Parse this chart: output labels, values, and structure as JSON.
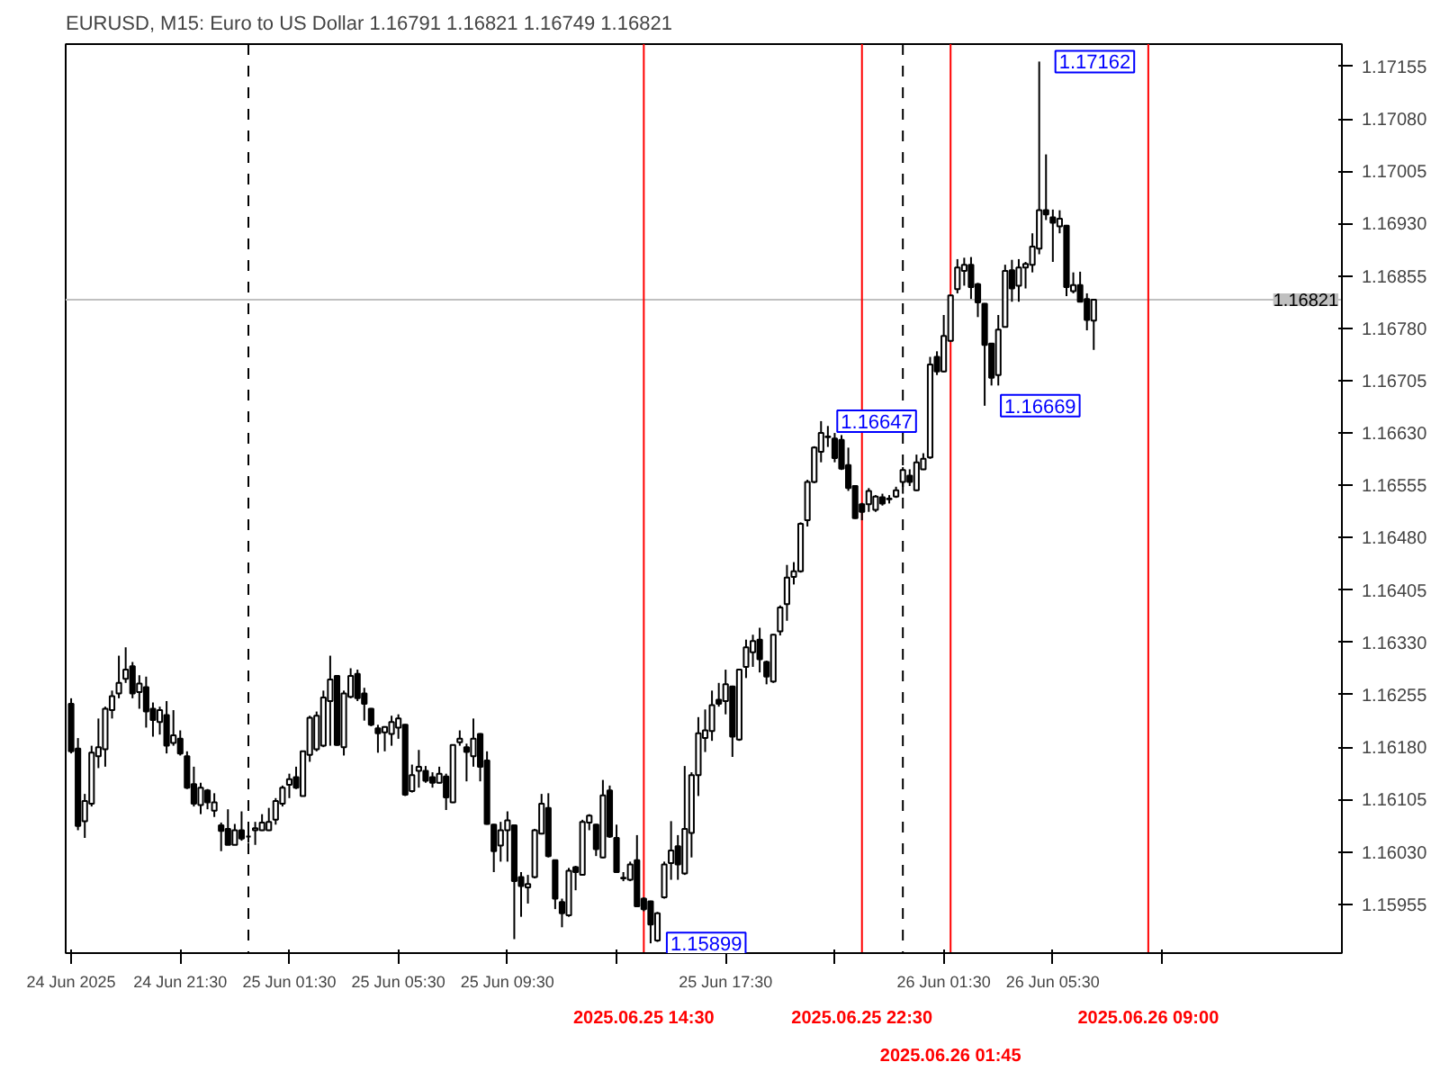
{
  "chart_data": {
    "type": "candlestick",
    "title": "EURUSD, M15: Euro to US Dollar 1.16791 1.16821 1.16749 1.16821",
    "x": [
      "2025-06-24T17:30",
      "2025-06-24T17:45",
      "2025-06-24T18:00",
      "2025-06-24T18:15",
      "2025-06-24T18:30",
      "2025-06-24T18:45",
      "2025-06-24T19:00",
      "2025-06-24T19:15",
      "2025-06-24T19:30",
      "2025-06-24T19:45",
      "2025-06-24T20:00",
      "2025-06-24T20:15",
      "2025-06-24T20:30",
      "2025-06-24T20:45",
      "2025-06-24T21:00",
      "2025-06-24T21:15",
      "2025-06-24T21:30",
      "2025-06-24T21:45",
      "2025-06-24T22:00",
      "2025-06-24T22:15",
      "2025-06-24T22:30",
      "2025-06-24T22:45",
      "2025-06-24T23:00",
      "2025-06-24T23:15",
      "2025-06-24T23:30",
      "2025-06-24T23:45",
      "2025-06-25T00:00",
      "2025-06-25T00:15",
      "2025-06-25T00:30",
      "2025-06-25T00:45",
      "2025-06-25T01:00",
      "2025-06-25T01:15",
      "2025-06-25T01:30",
      "2025-06-25T01:45",
      "2025-06-25T02:00",
      "2025-06-25T02:15",
      "2025-06-25T02:30",
      "2025-06-25T02:45",
      "2025-06-25T03:00",
      "2025-06-25T03:15",
      "2025-06-25T03:30",
      "2025-06-25T03:45",
      "2025-06-25T04:00",
      "2025-06-25T04:15",
      "2025-06-25T04:30",
      "2025-06-25T04:45",
      "2025-06-25T05:00",
      "2025-06-25T05:15",
      "2025-06-25T05:30",
      "2025-06-25T05:45",
      "2025-06-25T06:00",
      "2025-06-25T06:15",
      "2025-06-25T06:30",
      "2025-06-25T06:45",
      "2025-06-25T07:00",
      "2025-06-25T07:15",
      "2025-06-25T07:30",
      "2025-06-25T07:45",
      "2025-06-25T08:00",
      "2025-06-25T08:15",
      "2025-06-25T08:30",
      "2025-06-25T08:45",
      "2025-06-25T09:00",
      "2025-06-25T09:15",
      "2025-06-25T09:30",
      "2025-06-25T09:45",
      "2025-06-25T10:00",
      "2025-06-25T10:15",
      "2025-06-25T10:30",
      "2025-06-25T10:45",
      "2025-06-25T11:00",
      "2025-06-25T11:15",
      "2025-06-25T11:30",
      "2025-06-25T11:45",
      "2025-06-25T12:00",
      "2025-06-25T12:15",
      "2025-06-25T12:30",
      "2025-06-25T12:45",
      "2025-06-25T13:00",
      "2025-06-25T13:15",
      "2025-06-25T13:30",
      "2025-06-25T13:45",
      "2025-06-25T14:00",
      "2025-06-25T14:15",
      "2025-06-25T14:30",
      "2025-06-25T14:45",
      "2025-06-25T15:00",
      "2025-06-25T15:15",
      "2025-06-25T15:30",
      "2025-06-25T15:45",
      "2025-06-25T16:00",
      "2025-06-25T16:15",
      "2025-06-25T16:30",
      "2025-06-25T16:45",
      "2025-06-25T17:00",
      "2025-06-25T17:15",
      "2025-06-25T17:30",
      "2025-06-25T17:45",
      "2025-06-25T18:00",
      "2025-06-25T18:15",
      "2025-06-25T18:30",
      "2025-06-25T18:45",
      "2025-06-25T19:00",
      "2025-06-25T19:15",
      "2025-06-25T19:30",
      "2025-06-25T19:45",
      "2025-06-25T20:00",
      "2025-06-25T20:15",
      "2025-06-25T20:30",
      "2025-06-25T20:45",
      "2025-06-25T21:00",
      "2025-06-25T21:15",
      "2025-06-25T21:30",
      "2025-06-25T21:45",
      "2025-06-25T22:00",
      "2025-06-25T22:15",
      "2025-06-25T22:30",
      "2025-06-25T22:45",
      "2025-06-25T23:00",
      "2025-06-25T23:15",
      "2025-06-25T23:30",
      "2025-06-25T23:45",
      "2025-06-26T00:00",
      "2025-06-26T00:15",
      "2025-06-26T00:30",
      "2025-06-26T00:45",
      "2025-06-26T01:00",
      "2025-06-26T01:15",
      "2025-06-26T01:30",
      "2025-06-26T01:45",
      "2025-06-26T02:00",
      "2025-06-26T02:15",
      "2025-06-26T02:30",
      "2025-06-26T02:45",
      "2025-06-26T03:00",
      "2025-06-26T03:15",
      "2025-06-26T03:30",
      "2025-06-26T03:45",
      "2025-06-26T04:00",
      "2025-06-26T04:15",
      "2025-06-26T04:30",
      "2025-06-26T04:45",
      "2025-06-26T05:00",
      "2025-06-26T05:15",
      "2025-06-26T05:30",
      "2025-06-26T05:45",
      "2025-06-26T06:00",
      "2025-06-26T06:15",
      "2025-06-26T06:30",
      "2025-06-26T06:45",
      "2025-06-26T07:00"
    ],
    "ohlc": [
      [
        1.16242,
        1.1625,
        1.16171,
        1.16174
      ],
      [
        1.16178,
        1.16193,
        1.16061,
        1.16067
      ],
      [
        1.16074,
        1.16113,
        1.1605,
        1.16103
      ],
      [
        1.16099,
        1.16182,
        1.16095,
        1.16172
      ],
      [
        1.16167,
        1.16221,
        1.1615,
        1.1618
      ],
      [
        1.16177,
        1.16238,
        1.16152,
        1.16235
      ],
      [
        1.16233,
        1.16261,
        1.16221,
        1.16253
      ],
      [
        1.16257,
        1.16311,
        1.1625,
        1.16272
      ],
      [
        1.16278,
        1.16323,
        1.16272,
        1.16291
      ],
      [
        1.16296,
        1.16302,
        1.1625,
        1.16257
      ],
      [
        1.16259,
        1.16283,
        1.16235,
        1.16271
      ],
      [
        1.16266,
        1.16281,
        1.16208,
        1.16231
      ],
      [
        1.16235,
        1.16244,
        1.16195,
        1.16219
      ],
      [
        1.16216,
        1.16238,
        1.16198,
        1.16233
      ],
      [
        1.16226,
        1.16246,
        1.16171,
        1.16182
      ],
      [
        1.16186,
        1.16233,
        1.16182,
        1.16197
      ],
      [
        1.16192,
        1.16204,
        1.16168,
        1.16171
      ],
      [
        1.16167,
        1.16174,
        1.1612,
        1.16122
      ],
      [
        1.16127,
        1.16152,
        1.16095,
        1.16099
      ],
      [
        1.16097,
        1.16129,
        1.16084,
        1.16122
      ],
      [
        1.16118,
        1.1612,
        1.16091,
        1.16101
      ],
      [
        1.16089,
        1.16114,
        1.1608,
        1.16101
      ],
      [
        1.16068,
        1.16072,
        1.16031,
        1.1606
      ],
      [
        1.16063,
        1.16091,
        1.1604,
        1.1604
      ],
      [
        1.1604,
        1.1607,
        1.1604,
        1.16061
      ],
      [
        1.16061,
        1.16088,
        1.16046,
        1.16049
      ],
      [
        1.16052,
        1.1606,
        1.16043,
        1.16052
      ],
      [
        1.16061,
        1.16073,
        1.1604,
        1.16064
      ],
      [
        1.16061,
        1.16084,
        1.1606,
        1.16072
      ],
      [
        1.16061,
        1.16093,
        1.1606,
        1.16073
      ],
      [
        1.16076,
        1.16107,
        1.16069,
        1.16103
      ],
      [
        1.16099,
        1.16125,
        1.16095,
        1.16122
      ],
      [
        1.16126,
        1.16142,
        1.16107,
        1.16134
      ],
      [
        1.16137,
        1.16152,
        1.1612,
        1.16122
      ],
      [
        1.1611,
        1.16175,
        1.1611,
        1.16174
      ],
      [
        1.16169,
        1.16225,
        1.16159,
        1.16222
      ],
      [
        1.16177,
        1.16231,
        1.16174,
        1.16225
      ],
      [
        1.16182,
        1.16261,
        1.1618,
        1.16251
      ],
      [
        1.16246,
        1.16311,
        1.16182,
        1.16277
      ],
      [
        1.16282,
        1.16283,
        1.16182,
        1.16183
      ],
      [
        1.1618,
        1.16261,
        1.16168,
        1.16257
      ],
      [
        1.16252,
        1.16293,
        1.1625,
        1.16282
      ],
      [
        1.16285,
        1.16291,
        1.16246,
        1.1625
      ],
      [
        1.16257,
        1.16265,
        1.16218,
        1.16242
      ],
      [
        1.16235,
        1.16236,
        1.1621,
        1.16212
      ],
      [
        1.16207,
        1.16212,
        1.16172,
        1.162
      ],
      [
        1.16201,
        1.1621,
        1.16174,
        1.16209
      ],
      [
        1.16199,
        1.16225,
        1.16182,
        1.16216
      ],
      [
        1.16208,
        1.16227,
        1.16192,
        1.16221
      ],
      [
        1.16212,
        1.16213,
        1.1611,
        1.16112
      ],
      [
        1.16117,
        1.16155,
        1.16115,
        1.1614
      ],
      [
        1.16146,
        1.16176,
        1.16122,
        1.16152
      ],
      [
        1.16146,
        1.16153,
        1.16129,
        1.16132
      ],
      [
        1.16137,
        1.16144,
        1.16122,
        1.16129
      ],
      [
        1.16129,
        1.16152,
        1.16128,
        1.16142
      ],
      [
        1.16138,
        1.16142,
        1.1609,
        1.16108
      ],
      [
        1.16101,
        1.16184,
        1.161,
        1.16183
      ],
      [
        1.16187,
        1.16204,
        1.16182,
        1.16192
      ],
      [
        1.1618,
        1.16185,
        1.16131,
        1.16173
      ],
      [
        1.16167,
        1.16221,
        1.16152,
        1.16192
      ],
      [
        1.16199,
        1.162,
        1.16131,
        1.16152
      ],
      [
        1.16161,
        1.16174,
        1.16069,
        1.1607
      ],
      [
        1.16069,
        1.1607,
        1.16001,
        1.16031
      ],
      [
        1.16039,
        1.16073,
        1.16016,
        1.16061
      ],
      [
        1.16061,
        1.16088,
        1.16016,
        1.16075
      ],
      [
        1.16068,
        1.16069,
        1.15905,
        1.15988
      ],
      [
        1.15994,
        1.16001,
        1.15937,
        1.15981
      ],
      [
        1.15979,
        1.15997,
        1.15956,
        1.15984
      ],
      [
        1.15994,
        1.16063,
        1.15992,
        1.16061
      ],
      [
        1.16056,
        1.16113,
        1.16055,
        1.16099
      ],
      [
        1.16093,
        1.16114,
        1.16022,
        1.16024
      ],
      [
        1.16018,
        1.16019,
        1.15948,
        1.15963
      ],
      [
        1.15958,
        1.15963,
        1.15922,
        1.15942
      ],
      [
        1.15939,
        1.16007,
        1.15937,
        1.16003
      ],
      [
        1.16008,
        1.1601,
        1.15975,
        1.16001
      ],
      [
        1.15997,
        1.16076,
        1.15996,
        1.16073
      ],
      [
        1.16072,
        1.16084,
        1.16061,
        1.16082
      ],
      [
        1.16069,
        1.1607,
        1.16024,
        1.16034
      ],
      [
        1.16022,
        1.16133,
        1.16021,
        1.16111
      ],
      [
        1.16118,
        1.16125,
        1.1605,
        1.16052
      ],
      [
        1.1605,
        1.16069,
        1.16,
        1.16001
      ],
      [
        1.15992,
        1.16001,
        1.15988,
        1.15993
      ],
      [
        1.1599,
        1.16016,
        1.15988,
        1.16012
      ],
      [
        1.16018,
        1.16054,
        1.15951,
        1.15952
      ],
      [
        1.15963,
        1.15965,
        1.15945,
        1.15948
      ],
      [
        1.15959,
        1.1596,
        1.15899,
        1.15926
      ],
      [
        1.15903,
        1.15944,
        1.15901,
        1.15942
      ],
      [
        1.15965,
        1.16016,
        1.15963,
        1.16012
      ],
      [
        1.16014,
        1.16074,
        1.1599,
        1.16032
      ],
      [
        1.16038,
        1.16054,
        1.1599,
        1.16012
      ],
      [
        1.15999,
        1.16153,
        1.15997,
        1.16063
      ],
      [
        1.16057,
        1.16144,
        1.16022,
        1.1614
      ],
      [
        1.1614,
        1.16223,
        1.1611,
        1.162
      ],
      [
        1.16193,
        1.16234,
        1.16173,
        1.16204
      ],
      [
        1.16203,
        1.16261,
        1.16189,
        1.1624
      ],
      [
        1.16248,
        1.16272,
        1.16238,
        1.16242
      ],
      [
        1.16246,
        1.16291,
        1.16227,
        1.1627
      ],
      [
        1.16267,
        1.16268,
        1.16166,
        1.16195
      ],
      [
        1.16191,
        1.16292,
        1.16189,
        1.16291
      ],
      [
        1.16295,
        1.16334,
        1.16279,
        1.16323
      ],
      [
        1.16316,
        1.16341,
        1.16295,
        1.16332
      ],
      [
        1.16334,
        1.16351,
        1.16287,
        1.16306
      ],
      [
        1.16302,
        1.16304,
        1.1627,
        1.16281
      ],
      [
        1.16274,
        1.16342,
        1.16272,
        1.16341
      ],
      [
        1.16346,
        1.16383,
        1.1634,
        1.1638
      ],
      [
        1.16385,
        1.16441,
        1.16361,
        1.16423
      ],
      [
        1.16424,
        1.16445,
        1.16413,
        1.16432
      ],
      [
        1.16432,
        1.16502,
        1.1643,
        1.165
      ],
      [
        1.16505,
        1.16563,
        1.16496,
        1.1656
      ],
      [
        1.1656,
        1.16611,
        1.16558,
        1.16609
      ],
      [
        1.16603,
        1.16647,
        1.16588,
        1.1663
      ],
      [
        1.16624,
        1.1664,
        1.1661,
        1.16625
      ],
      [
        1.16622,
        1.1663,
        1.16588,
        1.16594
      ],
      [
        1.1662,
        1.16627,
        1.16577,
        1.16579
      ],
      [
        1.16584,
        1.16609,
        1.16547,
        1.16551
      ],
      [
        1.16554,
        1.16554,
        1.16507,
        1.16508
      ],
      [
        1.16528,
        1.1653,
        1.16505,
        1.16517
      ],
      [
        1.16528,
        1.16551,
        1.16517,
        1.16547
      ],
      [
        1.1652,
        1.16541,
        1.16517,
        1.16539
      ],
      [
        1.16538,
        1.16543,
        1.16526,
        1.16529
      ],
      [
        1.16535,
        1.16541,
        1.16529,
        1.16536
      ],
      [
        1.16539,
        1.16553,
        1.16537,
        1.16548
      ],
      [
        1.1656,
        1.16581,
        1.16543,
        1.16577
      ],
      [
        1.16569,
        1.16578,
        1.16554,
        1.1656
      ],
      [
        1.16548,
        1.16599,
        1.16547,
        1.16588
      ],
      [
        1.16578,
        1.16601,
        1.16577,
        1.16593
      ],
      [
        1.16595,
        1.16739,
        1.16593,
        1.16728
      ],
      [
        1.16739,
        1.16747,
        1.16713,
        1.16718
      ],
      [
        1.16718,
        1.16799,
        1.16717,
        1.16769
      ],
      [
        1.16762,
        1.16828,
        1.16761,
        1.16827
      ],
      [
        1.16836,
        1.16879,
        1.1683,
        1.16867
      ],
      [
        1.16862,
        1.16881,
        1.16841,
        1.16871
      ],
      [
        1.16871,
        1.16882,
        1.16822,
        1.16839
      ],
      [
        1.16843,
        1.16845,
        1.16796,
        1.16817
      ],
      [
        1.16815,
        1.16816,
        1.16669,
        1.16756
      ],
      [
        1.16758,
        1.16759,
        1.16698,
        1.16709
      ],
      [
        1.16713,
        1.16799,
        1.16698,
        1.16778
      ],
      [
        1.16782,
        1.16871,
        1.16781,
        1.16862
      ],
      [
        1.16863,
        1.16878,
        1.16818,
        1.16837
      ],
      [
        1.16841,
        1.16879,
        1.16818,
        1.16867
      ],
      [
        1.16867,
        1.16875,
        1.16837,
        1.16872
      ],
      [
        1.16871,
        1.16916,
        1.1686,
        1.16897
      ],
      [
        1.16894,
        1.17162,
        1.16886,
        1.16949
      ],
      [
        1.16949,
        1.17029,
        1.16935,
        1.16943
      ],
      [
        1.16939,
        1.1695,
        1.16875,
        1.16931
      ],
      [
        1.16926,
        1.16949,
        1.16916,
        1.16937
      ],
      [
        1.16927,
        1.16928,
        1.16826,
        1.16839
      ],
      [
        1.16833,
        1.1686,
        1.1683,
        1.16842
      ],
      [
        1.16842,
        1.16861,
        1.16817,
        1.16818
      ],
      [
        1.16822,
        1.1683,
        1.16777,
        1.16792
      ],
      [
        1.16791,
        1.16821,
        1.16749,
        1.16821
      ]
    ],
    "xlim": [
      "2025-06-24T17:18",
      "2025-06-26T16:06"
    ],
    "xticks": [
      {
        "value": "2025-06-24T17:30",
        "label": "24 Jun 2025"
      },
      {
        "value": "2025-06-24T21:30",
        "label": "24 Jun 21:30"
      },
      {
        "value": "2025-06-25T01:30",
        "label": "25 Jun 01:30"
      },
      {
        "value": "2025-06-25T05:30",
        "label": "25 Jun 05:30"
      },
      {
        "value": "2025-06-25T09:30",
        "label": "25 Jun 09:30"
      },
      {
        "value": "2025-06-25T13:30",
        "label": null
      },
      {
        "value": "2025-06-25T17:30",
        "label": "25 Jun 17:30"
      },
      {
        "value": "2025-06-25T21:30",
        "label": null
      },
      {
        "value": "2025-06-26T01:30",
        "label": "26 Jun 01:30"
      },
      {
        "value": "2025-06-26T05:30",
        "label": "26 Jun 05:30"
      },
      {
        "value": "2025-06-26T09:30",
        "label": null
      }
    ],
    "ylim": [
      1.15885,
      1.17187
    ],
    "yticks": [
      1.15955,
      {
        "value": 1.1603,
        "label": "1.16030"
      },
      1.16105,
      {
        "value": 1.1618,
        "label": "1.16180"
      },
      1.16255,
      {
        "value": 1.1633,
        "label": "1.16330"
      },
      1.16405,
      {
        "value": 1.1648,
        "label": "1.16480"
      },
      1.16555,
      {
        "value": 1.1663,
        "label": "1.16630"
      },
      1.16705,
      {
        "value": 1.1678,
        "label": "1.16780"
      },
      1.16855,
      {
        "value": 1.1693,
        "label": "1.16930"
      },
      1.17005,
      {
        "value": 1.1708,
        "label": "1.17080"
      },
      1.17155
    ],
    "ref_lines": [
      {
        "axis": "y",
        "value": 1.16821,
        "label": "1.16821",
        "color": "#c0c0c0"
      },
      {
        "axis": "x",
        "value": "2025-06-25T00:00",
        "label": null,
        "color": "#000000",
        "line_style": "dashed"
      },
      {
        "axis": "x",
        "value": "2025-06-26T00:00",
        "label": null,
        "color": "#000000",
        "line_style": "dashed"
      },
      {
        "axis": "x",
        "value": "2025-06-25T14:30",
        "label": "2025.06.25 14:30",
        "color": "#ff0000"
      },
      {
        "axis": "x",
        "value": "2025-06-25T22:30",
        "label": "2025.06.25 22:30",
        "color": "#ff0000"
      },
      {
        "axis": "x",
        "value": "2025-06-26T01:45",
        "label": "2025.06.26 01:45",
        "color": "#ff0000"
      },
      {
        "axis": "x",
        "value": "2025-06-26T09:00",
        "label": "2025.06.26 09:00",
        "color": "#ff0000"
      }
    ],
    "annotations": [
      {
        "text": "1.17162",
        "x": "2025-06-26T05:00",
        "y": 1.17162
      },
      {
        "text": "1.16647",
        "x": "2025-06-25T21:00",
        "y": 1.16647
      },
      {
        "text": "1.16669",
        "x": "2025-06-26T03:00",
        "y": 1.16669
      },
      {
        "text": "1.15899",
        "x": "2025-06-25T14:45",
        "y": 1.15899
      }
    ]
  }
}
